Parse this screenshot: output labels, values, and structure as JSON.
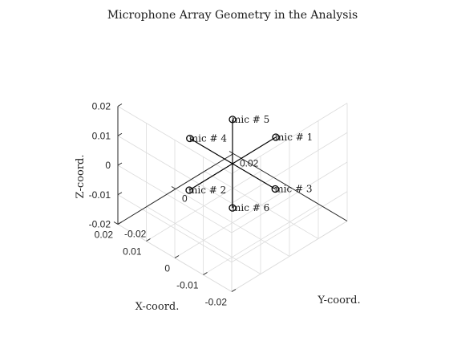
{
  "chart_data": {
    "type": "scatter3d",
    "title": "Microphone Array Geometry in the Analysis",
    "xlabel": "X-coord.",
    "ylabel": "Y-coord.",
    "zlabel": "Z-coord.",
    "xlim": [
      -0.02,
      0.02
    ],
    "ylim": [
      -0.02,
      0.02
    ],
    "zlim": [
      -0.02,
      0.02
    ],
    "x_ticks": [
      "-0.02",
      "-0.01",
      "0",
      "0.01",
      "0.02"
    ],
    "y_ticks": [
      "-0.02",
      "0",
      "0.02"
    ],
    "z_ticks": [
      "0.02",
      "0.01",
      "0",
      "-0.01",
      "-0.02"
    ],
    "grid": true,
    "points": [
      {
        "label": "mic # 1",
        "x": 0,
        "y": 0.015,
        "z": 0
      },
      {
        "label": "mic # 2",
        "x": 0,
        "y": -0.015,
        "z": 0
      },
      {
        "label": "mic # 3",
        "x": -0.015,
        "y": 0,
        "z": 0
      },
      {
        "label": "mic # 4",
        "x": 0.015,
        "y": 0,
        "z": 0
      },
      {
        "label": "mic # 5",
        "x": 0,
        "y": 0,
        "z": 0.015
      },
      {
        "label": "mic # 6",
        "x": 0,
        "y": 0,
        "z": -0.015
      }
    ]
  }
}
